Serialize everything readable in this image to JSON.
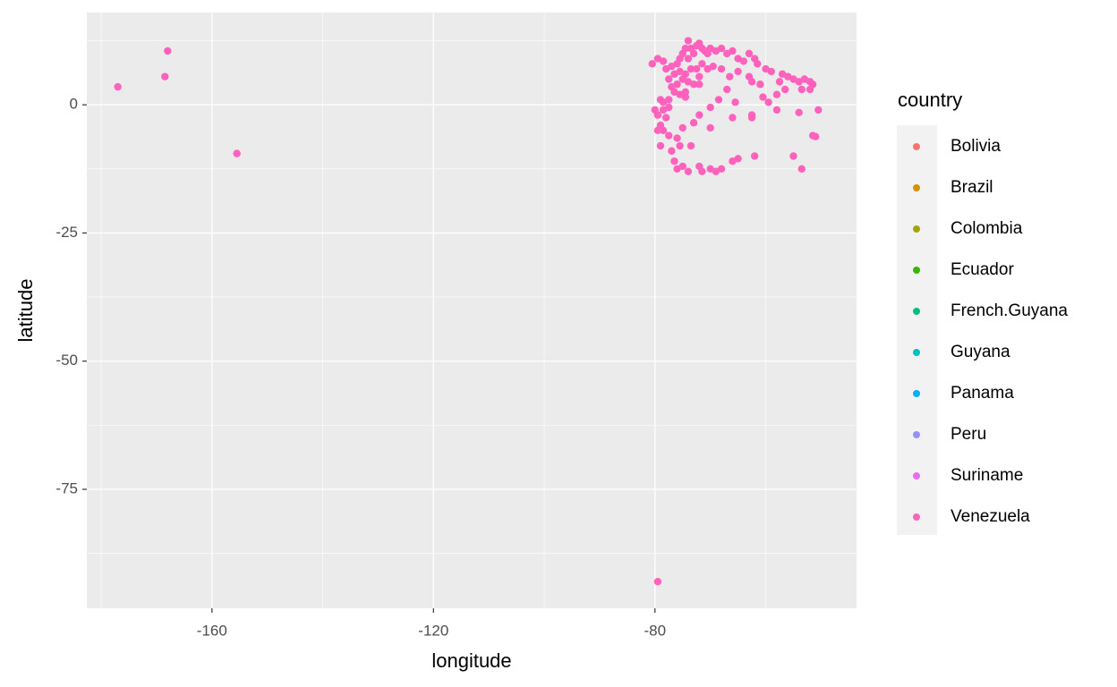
{
  "chart_data": {
    "type": "scatter",
    "x_label": "longitude",
    "y_label": "latitude",
    "legend_title": "country",
    "xlim": [
      -182.6,
      -43.6
    ],
    "ylim": [
      -98.2,
      18.0
    ],
    "xticks": [
      -160,
      -120,
      -80
    ],
    "yticks": [
      0,
      -25,
      -50,
      -75
    ],
    "x_minor_grid": [
      -180,
      -140,
      -100,
      -60
    ],
    "y_minor_grid": [
      12.5,
      -12.5,
      -37.5,
      -62.5,
      -87.5
    ],
    "grid": true,
    "legend": "right",
    "series": [
      {
        "name": "Bolivia",
        "color": "#F8766D",
        "x": [],
        "y": []
      },
      {
        "name": "Brazil",
        "color": "#D89000",
        "x": [],
        "y": []
      },
      {
        "name": "Colombia",
        "color": "#A3A500",
        "x": [],
        "y": []
      },
      {
        "name": "Ecuador",
        "color": "#39B600",
        "x": [],
        "y": []
      },
      {
        "name": "French.Guyana",
        "color": "#00BF7D",
        "x": [],
        "y": []
      },
      {
        "name": "Guyana",
        "color": "#00BFC4",
        "x": [],
        "y": []
      },
      {
        "name": "Panama",
        "color": "#00B0F6",
        "x": [],
        "y": []
      },
      {
        "name": "Peru",
        "color": "#9590FF",
        "x": [],
        "y": []
      },
      {
        "name": "Suriname",
        "color": "#E76BF3",
        "x": [],
        "y": []
      },
      {
        "name": "Venezuela",
        "color": "#FF62BC",
        "x": [
          -177,
          -168.5,
          -168,
          -155.5,
          -79.5,
          -80.5,
          -79.5,
          -78.5,
          -77,
          -76,
          -75.5,
          -75,
          -74.5,
          -74,
          -73.5,
          -73,
          -72.5,
          -72,
          -71.5,
          -71,
          -70.5,
          -70,
          -69,
          -68,
          -67,
          -66,
          -65,
          -64,
          -63,
          -62,
          -61.5,
          -60,
          -59,
          -57,
          -56,
          -55,
          -54,
          -53,
          -52,
          -51.5,
          -52,
          -53.5,
          -57.5,
          -56.5,
          -58,
          -61,
          -62.5,
          -63,
          -65,
          -66.5,
          -68,
          -69.5,
          -70.5,
          -71.5,
          -72.5,
          -73.5,
          -74.5,
          -75.5,
          -76.5,
          -75,
          -74,
          -73,
          -72,
          -76,
          -77,
          -76.5,
          -75.5,
          -74.5,
          -77.5,
          -78.5,
          -79,
          -80,
          -79.5,
          -78.5,
          -77.5,
          -78,
          -79,
          -79.5,
          -78.5,
          -77.5,
          -76,
          -75,
          -73,
          -72,
          -70,
          -66,
          -62.5,
          -58,
          -54,
          -50.5,
          -62.5,
          -73.5,
          -75.5,
          -77,
          -79,
          -76.5,
          -76,
          -75,
          -74,
          -72,
          -71.5,
          -70,
          -69,
          -68,
          -66,
          -65,
          -62,
          -55,
          -53.5,
          -51.5,
          -51,
          -72,
          -67,
          -68.5,
          -70,
          -65.5,
          -60.5,
          -59.5,
          -74,
          -77.5,
          -78,
          -74.5
        ],
        "y": [
          3.5,
          5.5,
          10.5,
          -9.5,
          -93,
          8,
          9,
          8.5,
          7.5,
          8,
          9,
          10,
          11,
          12.5,
          11,
          10,
          11.5,
          12,
          11,
          10.5,
          10,
          11,
          10.5,
          11,
          10,
          10.5,
          9,
          8.5,
          10,
          9,
          8,
          7,
          6.5,
          6,
          5.5,
          5,
          4.5,
          5,
          4.5,
          4,
          3,
          3,
          4.5,
          3,
          2,
          4,
          4.5,
          5.5,
          6.5,
          5.5,
          7,
          7.5,
          7,
          8,
          7,
          7,
          6,
          6.5,
          6,
          5,
          4.5,
          4,
          4,
          4,
          3.5,
          2.5,
          2,
          1.5,
          1,
          0.5,
          1,
          -1,
          -2,
          -1,
          -0.5,
          -2.5,
          -4,
          -5,
          -5,
          -6,
          -6.5,
          -4.5,
          -3.5,
          -2,
          -4.5,
          -2.5,
          -2,
          -1,
          -1.5,
          -1,
          -2.5,
          -8,
          -8,
          -9,
          -8,
          -11,
          -12.5,
          -12,
          -13,
          -12,
          -13,
          -12.5,
          -13,
          -12.5,
          -11,
          -10.5,
          -10,
          -10,
          -12.5,
          -6,
          -6.2,
          5.5,
          3,
          1,
          -0.5,
          0.5,
          1.5,
          0.5,
          9,
          5,
          7,
          2.5
        ]
      }
    ]
  }
}
